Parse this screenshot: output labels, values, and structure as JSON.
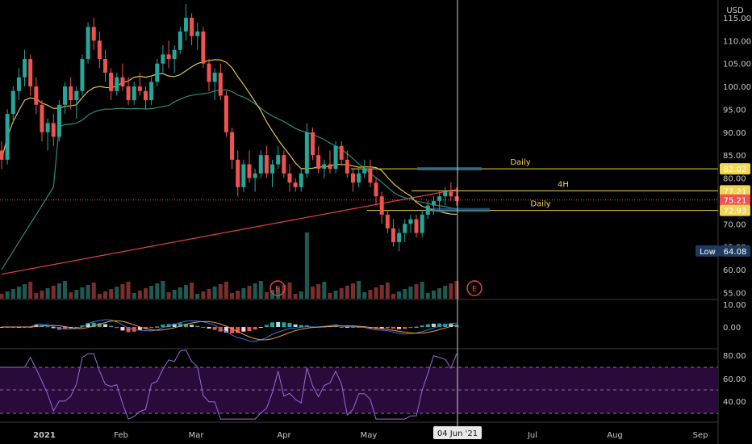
{
  "currency": "USD",
  "chart_data": {
    "type": "candlestick",
    "xticks": [
      "2021",
      "Feb",
      "Mar",
      "Apr",
      "May",
      "04 Jun '21",
      "Jul",
      "Aug",
      "Sep"
    ],
    "price_ticks": [
      "115.00",
      "110.00",
      "105.00",
      "100.00",
      "95.00",
      "90.00",
      "85.00",
      "80.00",
      "75.00",
      "70.00",
      "65.00",
      "60.00",
      "55.00"
    ],
    "price_range": [
      54,
      118
    ],
    "close_price": 75.21,
    "low_label": "Low",
    "low_price": "64.08",
    "levels": [
      {
        "label": "Daily",
        "price": 82.02,
        "badge": "82.02"
      },
      {
        "label": "4H",
        "price": 77.21,
        "badge": "77.21"
      },
      {
        "label": "Daily",
        "price": 72.93,
        "badge": "72.93"
      }
    ],
    "current_badge": "75.21",
    "earnings_marker": "E",
    "candles_ohlc": [
      [
        86,
        88,
        82,
        84
      ],
      [
        84,
        95,
        83,
        94
      ],
      [
        94,
        100,
        92,
        99
      ],
      [
        99,
        104,
        97,
        102
      ],
      [
        102,
        108,
        100,
        106
      ],
      [
        106,
        107,
        98,
        100
      ],
      [
        100,
        102,
        94,
        96
      ],
      [
        96,
        97,
        88,
        90
      ],
      [
        90,
        93,
        86,
        92
      ],
      [
        92,
        94,
        87,
        89
      ],
      [
        89,
        97,
        88,
        96
      ],
      [
        96,
        101,
        94,
        100
      ],
      [
        100,
        102,
        95,
        97
      ],
      [
        97,
        100,
        93,
        99
      ],
      [
        99,
        107,
        98,
        106
      ],
      [
        106,
        114,
        105,
        113
      ],
      [
        113,
        115,
        108,
        110
      ],
      [
        110,
        112,
        104,
        106
      ],
      [
        106,
        108,
        101,
        103
      ],
      [
        103,
        104,
        97,
        99
      ],
      [
        99,
        103,
        98,
        102
      ],
      [
        102,
        105,
        99,
        100
      ],
      [
        100,
        102,
        96,
        97
      ],
      [
        97,
        101,
        96,
        100
      ],
      [
        100,
        103,
        98,
        99
      ],
      [
        99,
        100,
        95,
        97
      ],
      [
        97,
        102,
        96,
        101
      ],
      [
        101,
        106,
        100,
        105
      ],
      [
        105,
        109,
        103,
        107
      ],
      [
        107,
        110,
        104,
        106
      ],
      [
        106,
        109,
        103,
        108
      ],
      [
        108,
        113,
        107,
        112
      ],
      [
        112,
        118,
        110,
        115
      ],
      [
        115,
        116,
        109,
        111
      ],
      [
        111,
        114,
        108,
        112
      ],
      [
        112,
        113,
        104,
        105
      ],
      [
        105,
        106,
        99,
        101
      ],
      [
        101,
        104,
        97,
        103
      ],
      [
        103,
        105,
        97,
        98
      ],
      [
        98,
        99,
        89,
        90
      ],
      [
        90,
        91,
        82,
        84
      ],
      [
        84,
        86,
        76,
        78
      ],
      [
        78,
        84,
        77,
        83
      ],
      [
        83,
        86,
        79,
        80
      ],
      [
        80,
        82,
        77,
        81
      ],
      [
        81,
        86,
        80,
        85
      ],
      [
        85,
        87,
        80,
        81
      ],
      [
        81,
        84,
        78,
        83
      ],
      [
        83,
        87,
        82,
        85
      ],
      [
        85,
        86,
        80,
        81
      ],
      [
        81,
        83,
        77,
        79
      ],
      [
        79,
        80,
        77,
        78
      ],
      [
        78,
        82,
        77,
        81
      ],
      [
        81,
        92,
        80,
        90
      ],
      [
        90,
        91,
        84,
        85
      ],
      [
        85,
        87,
        81,
        82
      ],
      [
        82,
        84,
        80,
        83
      ],
      [
        83,
        86,
        81,
        82
      ],
      [
        82,
        88,
        81,
        87
      ],
      [
        87,
        88,
        83,
        84
      ],
      [
        84,
        86,
        80,
        81
      ],
      [
        81,
        82,
        77,
        79
      ],
      [
        79,
        82,
        78,
        81
      ],
      [
        81,
        84,
        80,
        82
      ],
      [
        82,
        84,
        78,
        79
      ],
      [
        79,
        80,
        74,
        76
      ],
      [
        76,
        77,
        70,
        72
      ],
      [
        72,
        73,
        68,
        69
      ],
      [
        69,
        71,
        65,
        66
      ],
      [
        66,
        69,
        64,
        68
      ],
      [
        68,
        71,
        66,
        70
      ],
      [
        70,
        72,
        68,
        71
      ],
      [
        71,
        72,
        67,
        68
      ],
      [
        68,
        73,
        67,
        72
      ],
      [
        72,
        75,
        71,
        74
      ],
      [
        74,
        76,
        72,
        75
      ],
      [
        75,
        77,
        73,
        76
      ],
      [
        76,
        78,
        74,
        77
      ],
      [
        77,
        79,
        75,
        76
      ],
      [
        76,
        78,
        74,
        75
      ]
    ]
  }
}
